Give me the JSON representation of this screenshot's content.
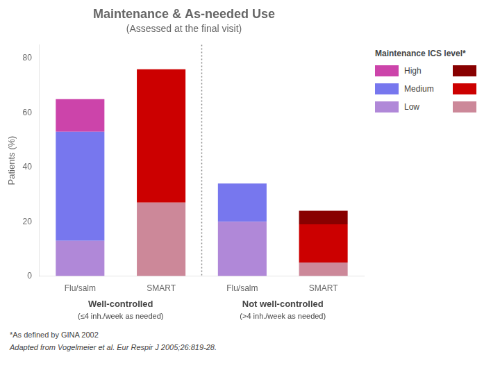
{
  "chart_data": {
    "type": "bar",
    "title": "Maintenance & As-needed Use",
    "subtitle": "(Assessed at the final visit)",
    "ylabel": "Patients (%)",
    "categories": [
      "Flu/salm",
      "SMART",
      "Flu/salm",
      "SMART"
    ],
    "series": [
      {
        "name": "Low",
        "colors": [
          "#b088d8",
          "#cc8899",
          "#b088d8",
          "#cc8899"
        ],
        "values": [
          13,
          27,
          20,
          5
        ]
      },
      {
        "name": "Medium",
        "colors": [
          "#7777ee",
          "#cc0000",
          "#7777ee",
          "#cc0000"
        ],
        "values": [
          40,
          49,
          14,
          14
        ]
      },
      {
        "name": "High",
        "colors": [
          "#cc44aa",
          "#880000",
          "#cc44aa",
          "#880000"
        ],
        "values": [
          12,
          0,
          0,
          5
        ]
      }
    ],
    "stacked": true,
    "ylim": [
      0,
      85
    ],
    "yticks": [
      0,
      20,
      40,
      60,
      80
    ],
    "grid": false,
    "legend": "upper right",
    "legend_title": "Maintenance ICS level*",
    "group_labels": [
      {
        "label": "Well-controlled",
        "sublabel": "(≤4 inh./week as needed)"
      },
      {
        "label": "Not well-controlled",
        "sublabel": "(>4 inh./week as needed)"
      }
    ],
    "footnotes": [
      "*As defined by GINA 2002",
      "Adapted from Vogelmeier et al. Eur Respir J 2005;26:819-28."
    ]
  }
}
